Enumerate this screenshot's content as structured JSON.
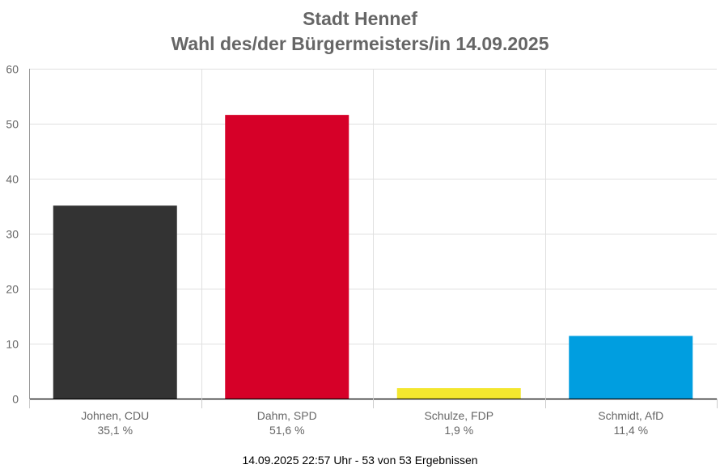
{
  "chart_data": {
    "type": "bar",
    "title": "Stadt Hennef",
    "subtitle": "Wahl des/der Bürgermeisters/in 14.09.2025",
    "categories": [
      "Johnen, CDU",
      "Dahm, SPD",
      "Schulze, FDP",
      "Schmidt, AfD"
    ],
    "values": [
      35.1,
      51.6,
      1.9,
      11.4
    ],
    "value_labels": [
      "35,1 %",
      "51,6 %",
      "1,9 %",
      "11,4 %"
    ],
    "colors": [
      "#333333",
      "#d60028",
      "#f4e72e",
      "#009ee0"
    ],
    "ylim": [
      0,
      60
    ],
    "yticks": [
      0,
      10,
      20,
      30,
      40,
      50,
      60
    ],
    "grid": true,
    "footer": "14.09.2025 22:57 Uhr - 53 von 53 Ergebnissen"
  }
}
